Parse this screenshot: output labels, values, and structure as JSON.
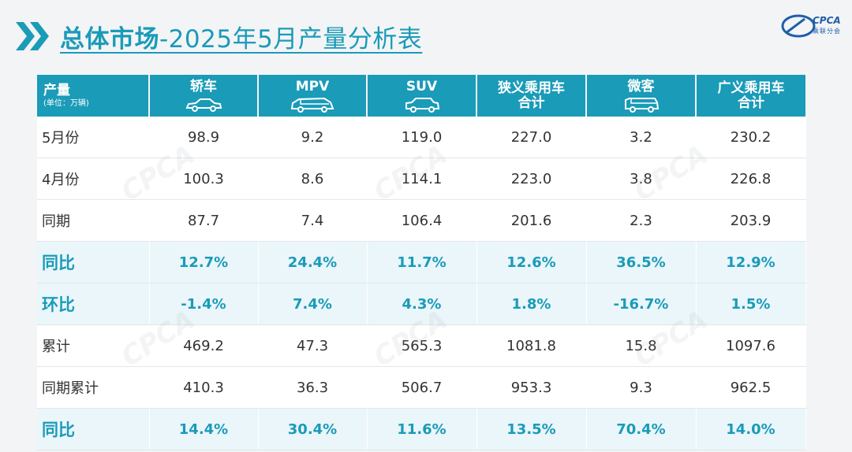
{
  "title": {
    "bold": "总体市场",
    "rest": "-2025年5月产量分析表"
  },
  "logo": {
    "text": "CPCA",
    "sub": "乘联分会"
  },
  "table": {
    "corner": {
      "label": "产量",
      "unit": "(单位：万辆)"
    },
    "columns": [
      {
        "label": "轿车",
        "icon": "sedan-icon"
      },
      {
        "label": "MPV",
        "icon": "mpv-icon"
      },
      {
        "label": "SUV",
        "icon": "suv-icon"
      },
      {
        "label": "狭义乘用车",
        "label2": "合计"
      },
      {
        "label": "微客",
        "icon": "minivan-icon"
      },
      {
        "label": "广义乘用车",
        "label2": "合计"
      }
    ],
    "rows": [
      {
        "label": "5月份",
        "values": [
          "98.9",
          "9.2",
          "119.0",
          "227.0",
          "3.2",
          "230.2"
        ],
        "highlight": false
      },
      {
        "label": "4月份",
        "values": [
          "100.3",
          "8.6",
          "114.1",
          "223.0",
          "3.8",
          "226.8"
        ],
        "highlight": false
      },
      {
        "label": "同期",
        "values": [
          "87.7",
          "7.4",
          "106.4",
          "201.6",
          "2.3",
          "203.9"
        ],
        "highlight": false
      },
      {
        "label": "同比",
        "values": [
          "12.7%",
          "24.4%",
          "11.7%",
          "12.6%",
          "36.5%",
          "12.9%"
        ],
        "highlight": true
      },
      {
        "label": "环比",
        "values": [
          "-1.4%",
          "7.4%",
          "4.3%",
          "1.8%",
          "-16.7%",
          "1.5%"
        ],
        "highlight": true
      },
      {
        "label": "累计",
        "values": [
          "469.2",
          "47.3",
          "565.3",
          "1081.8",
          "15.8",
          "1097.6"
        ],
        "highlight": false
      },
      {
        "label": "同期累计",
        "values": [
          "410.3",
          "36.3",
          "506.7",
          "953.3",
          "9.3",
          "962.5"
        ],
        "highlight": false
      },
      {
        "label": "同比",
        "values": [
          "14.4%",
          "30.4%",
          "11.6%",
          "13.5%",
          "70.4%",
          "14.0%"
        ],
        "highlight": true
      }
    ]
  },
  "colors": {
    "accent": "#1a9bb8",
    "highlight_bg": "#eaf6fa",
    "logo": "#1f5fa8"
  }
}
